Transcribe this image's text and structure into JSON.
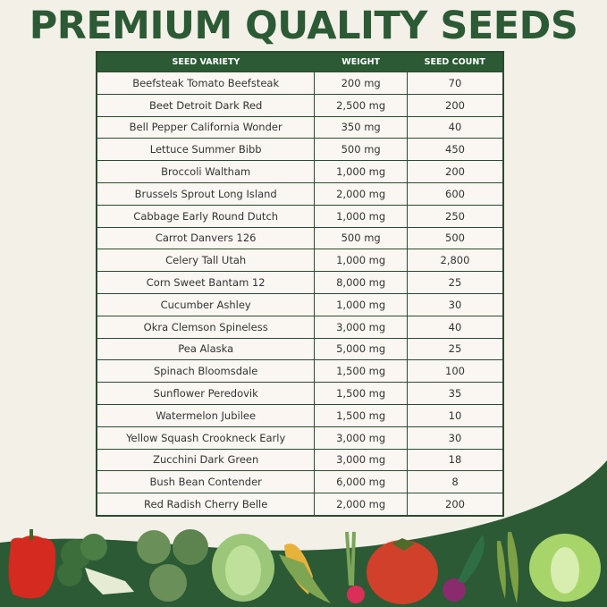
{
  "title": "PREMIUM QUALITY SEEDS",
  "colors": {
    "brand_green": "#2b5a35",
    "background": "#f3f0e8"
  },
  "table": {
    "headers": [
      "SEED VARIETY",
      "WEIGHT",
      "SEED COUNT"
    ],
    "rows": [
      [
        "Beefsteak Tomato Beefsteak",
        "200 mg",
        "70"
      ],
      [
        "Beet Detroit Dark Red",
        "2,500 mg",
        "200"
      ],
      [
        "Bell Pepper California Wonder",
        "350 mg",
        "40"
      ],
      [
        "Lettuce Summer Bibb",
        "500 mg",
        "450"
      ],
      [
        "Broccoli Waltham",
        "1,000 mg",
        "200"
      ],
      [
        "Brussels Sprout Long Island",
        "2,000 mg",
        "600"
      ],
      [
        "Cabbage Early Round Dutch",
        "1,000 mg",
        "250"
      ],
      [
        "Carrot Danvers 126",
        "500 mg",
        "500"
      ],
      [
        "Celery Tall Utah",
        "1,000 mg",
        "2,800"
      ],
      [
        "Corn Sweet Bantam 12",
        "8,000 mg",
        "25"
      ],
      [
        "Cucumber Ashley",
        "1,000 mg",
        "30"
      ],
      [
        "Okra Clemson Spineless",
        "3,000 mg",
        "40"
      ],
      [
        "Pea Alaska",
        "5,000 mg",
        "25"
      ],
      [
        "Spinach Bloomsdale",
        "1,500 mg",
        "100"
      ],
      [
        "Sunflower Peredovik",
        "1,500 mg",
        "35"
      ],
      [
        "Watermelon Jubilee",
        "1,500 mg",
        "10"
      ],
      [
        "Yellow Squash Crookneck Early",
        "3,000 mg",
        "30"
      ],
      [
        "Zucchini Dark Green",
        "3,000 mg",
        "18"
      ],
      [
        "Bush Bean Contender",
        "6,000 mg",
        "8"
      ],
      [
        "Red Radish Cherry Belle",
        "2,000 mg",
        "200"
      ]
    ]
  },
  "illustrations": [
    "bell-pepper",
    "broccoli",
    "brussels-sprouts",
    "cabbage",
    "corn",
    "radish",
    "tomato",
    "beet",
    "okra",
    "lettuce"
  ]
}
